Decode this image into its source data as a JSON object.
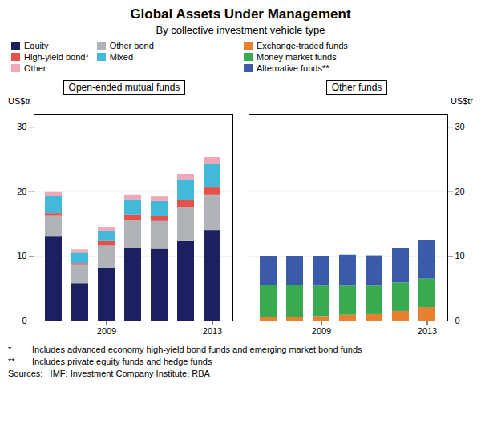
{
  "title": "Global Assets Under Management",
  "subtitle": "By collective investment vehicle type",
  "annotations": [
    "*",
    "Includes advanced economy high-yield bond funds and emerging market bond funds",
    "**",
    "Includes private equity funds and hedge funds",
    "Sources:   IMF; Investment Company Institute; RBA"
  ],
  "chart_data": [
    {
      "type": "bar",
      "stacked": true,
      "title": "Open-ended mutual funds",
      "ylabel": "US$tr",
      "categories": [
        null,
        null,
        "2009",
        null,
        null,
        null,
        "2013"
      ],
      "series": [
        {
          "name": "Equity",
          "color": "#1c2060",
          "values": [
            13.0,
            5.8,
            8.2,
            11.2,
            11.1,
            12.3,
            14.0
          ]
        },
        {
          "name": "Other bond",
          "color": "#b0b4b8",
          "values": [
            3.3,
            2.8,
            3.4,
            4.3,
            4.3,
            5.3,
            5.5
          ]
        },
        {
          "name": "High-yield bond*",
          "color": "#e8504a",
          "values": [
            0.3,
            0.3,
            0.7,
            0.9,
            0.8,
            1.1,
            1.2
          ]
        },
        {
          "name": "Mixed",
          "color": "#44b8d8",
          "values": [
            2.7,
            1.6,
            1.6,
            2.4,
            2.3,
            3.2,
            3.5
          ]
        },
        {
          "name": "Other",
          "color": "#f0a8b8",
          "values": [
            0.7,
            0.5,
            0.6,
            0.7,
            0.7,
            0.8,
            1.1
          ]
        }
      ],
      "ylim": [
        0,
        32
      ],
      "yticks": [
        0,
        10,
        20,
        30
      ],
      "grid": true,
      "legend": "top"
    },
    {
      "type": "bar",
      "stacked": true,
      "title": "Other funds",
      "ylabel": "US$tr",
      "categories": [
        null,
        null,
        "2009",
        null,
        null,
        null,
        "2013"
      ],
      "series": [
        {
          "name": "Exchange-traded funds",
          "color": "#e88030",
          "values": [
            0.5,
            0.5,
            0.7,
            0.9,
            1.0,
            1.5,
            2.1
          ]
        },
        {
          "name": "Money market funds",
          "color": "#38aa50",
          "values": [
            5.0,
            5.0,
            4.7,
            4.5,
            4.4,
            4.4,
            4.4
          ]
        },
        {
          "name": "Alternative funds**",
          "color": "#3a5aaa",
          "values": [
            4.5,
            4.5,
            4.6,
            4.8,
            4.7,
            5.3,
            5.9
          ]
        }
      ],
      "ylim": [
        0,
        32
      ],
      "yticks": [
        0,
        10,
        20,
        30
      ],
      "grid": true,
      "legend": "top"
    }
  ]
}
